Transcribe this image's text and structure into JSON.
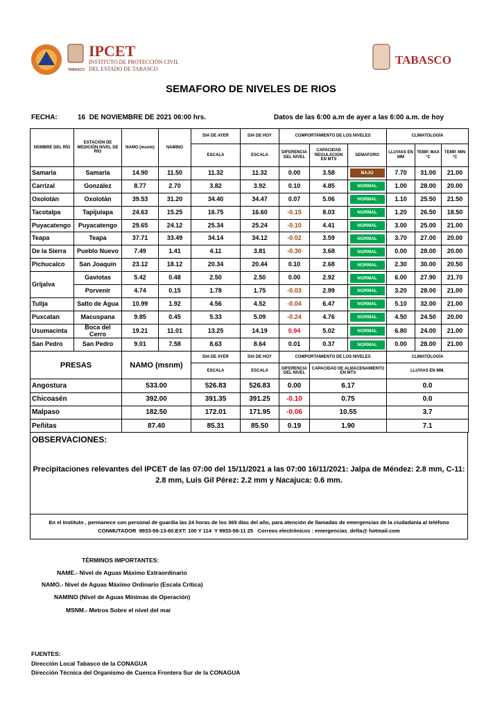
{
  "header": {
    "org_name": "IPCET",
    "org_line1": "INSTITUTO DE PROTECCIÓN CIVIL",
    "org_line2": "DEL ESTADO DE TABASCO",
    "badge_text": "TABASCO",
    "state_name": "TABASCO"
  },
  "title": "SEMAFORO DE NIVELES DE RIOS",
  "fecha_label": "FECHA:",
  "fecha": "16  DE NOVIEMBRE DE 2021 06:00 hrs.",
  "period": "Datos de las 6:00 a.m de ayer a las 6:00 a.m. de hoy",
  "rivers_table": {
    "headers": {
      "river": "NOMBRE DEL RÍO",
      "station": "ESTACIÓN DE MEDICIÓN NIVEL DE RÍO",
      "namo": "NAMO (msnm)",
      "namino": "NAMINO",
      "ayer": "DIA DE AYER",
      "hoy": "DIA DE HOY",
      "comportamiento": "COMPORTAMIENTO DE LOS NIVELES",
      "climatologia": "CLIMATOLOGÍA",
      "escala_ayer": "ESCALA",
      "escala_hoy": "ESCALA",
      "diferencia": "DIFERENCIA DEL NIVEL",
      "capacidad": "CAPACIDAD REGULACION EN MTS",
      "semaforo": "SEMAFORO",
      "lluvias": "LLUVIAS EN MM",
      "temp_max": "TEMP. MAX °C",
      "temp_min": "TEMP.  MIN °C"
    },
    "rows": [
      [
        "Samaria",
        "Samaria",
        "14.90",
        "11.50",
        "11.32",
        "11.32",
        "0.00",
        "3.58",
        "BAJO",
        "7.70",
        "31.00",
        "21.00"
      ],
      [
        "Carrizal",
        "González",
        "8.77",
        "2.70",
        "3.82",
        "3.92",
        "0.10",
        "4.85",
        "NORMAL",
        "1.00",
        "28.00",
        "20.00"
      ],
      [
        "Oxolotán",
        "Oxolotán",
        "39.53",
        "31.20",
        "34.40",
        "34.47",
        "0.07",
        "5.06",
        "NORMAL",
        "1.10",
        "25.50",
        "21.50"
      ],
      [
        "Tacotalpa",
        "Tapijulapa",
        "24.63",
        "15.25",
        "16.75",
        "16.60",
        "-0.15",
        "8.03",
        "NORMAL",
        "1.20",
        "26.50",
        "18.50"
      ],
      [
        "Puyacatengo",
        "Puyacatengo",
        "29.65",
        "24.12",
        "25.34",
        "25.24",
        "-0.10",
        "4.41",
        "NORMAL",
        "3.00",
        "25.00",
        "21.00"
      ],
      [
        "Teapa",
        "Teapa",
        "37.71",
        "33.49",
        "34.14",
        "34.12",
        "-0.02",
        "3.59",
        "NORMAL",
        "3.70",
        "27.00",
        "20.00"
      ],
      [
        "De la Sierra",
        "Pueblo Nuevo",
        "7.49",
        "1.41",
        "4.11",
        "3.81",
        "-0.30",
        "3.68",
        "NORMAL",
        "0.00",
        "28.00",
        "20.00"
      ],
      [
        "Pichucalco",
        "San Joaquín",
        "23.12",
        "18.12",
        "20.34",
        "20.44",
        "0.10",
        "2.68",
        "NORMAL",
        "2.30",
        "30.00",
        "20.50"
      ],
      [
        "Grijalva",
        "Gaviotas",
        "5.42",
        "0.48",
        "2.50",
        "2.50",
        "0.00",
        "2.92",
        "NORMAL",
        "6.00",
        "27.90",
        "21.70"
      ],
      [
        null,
        "Porvenir",
        "4.74",
        "0.15",
        "1.78",
        "1.75",
        "-0.03",
        "2.99",
        "NORMAL",
        "3.20",
        "28.00",
        "21.00"
      ],
      [
        "Tulija",
        "Salto de Agua",
        "10.99",
        "1.92",
        "4.56",
        "4.52",
        "-0.04",
        "6.47",
        "NORMAL",
        "5.10",
        "32.00",
        "21.00"
      ],
      [
        "Puxcatan",
        "Macuspana",
        "9.85",
        "0.45",
        "5.33",
        "5.09",
        "-0.24",
        "4.76",
        "NORMAL",
        "4.50",
        "24.50",
        "20.00"
      ],
      [
        "Usumacinta",
        "Boca del Cerro",
        "19.21",
        "11.01",
        "13.25",
        "14.19",
        "0.94",
        "5.02",
        "NORMAL",
        "6.80",
        "24.00",
        "21.00"
      ],
      [
        "San Pedro",
        "San Pedro",
        "9.01",
        "7.58",
        "8.63",
        "8.64",
        "0.01",
        "0.37",
        "NORMAL",
        "0.00",
        "28.00",
        "21.00"
      ]
    ],
    "diff_colors": [
      null,
      null,
      null,
      "#9a4a12",
      "#9a4a12",
      "#9a4a12",
      "#9a4a12",
      null,
      null,
      "#9a4a12",
      "#9a4a12",
      "#9a4a12",
      "#e0001b",
      null
    ],
    "semaforo_colors": {
      "BAJO": "#8c4a1c",
      "NORMAL": "#00a650"
    }
  },
  "presas_table": {
    "headers": {
      "presas": "PRESAS",
      "namo": "NAMO (msnm)",
      "ayer": "DIA DE AYER",
      "hoy": "DIA DE HOY",
      "comportamiento": "COMPORTAMIENTO DE LOS NIVELES",
      "climatologia": "CLIMATOLOGÍA",
      "escala_ayer": "ESCALA",
      "escala_hoy": "ESCALA",
      "diferencia": "DIFERENCIA DEL NIVEL",
      "capacidad": "CAPACIDAD DE ALMACENAMIENTO EN MTS",
      "lluvias": "LLUVIAS EN MM."
    },
    "rows": [
      [
        "Angostura",
        "533.00",
        "526.83",
        "526.83",
        "0.00",
        "6.17",
        "0.0"
      ],
      [
        "Chicoasén",
        "392.00",
        "391.35",
        "391.25",
        "-0.10",
        "0.75",
        "0.0"
      ],
      [
        "Malpaso",
        "182.50",
        "172.01",
        "171.95",
        "-0.06",
        "10.55",
        "3.7"
      ],
      [
        "Peñitas",
        "87.40",
        "85.31",
        "85.50",
        "0.19",
        "1.90",
        "7.1"
      ]
    ],
    "diff_colors": [
      null,
      "#e0001b",
      "#e0001b",
      null
    ]
  },
  "observaciones": {
    "label": "OBSERVACIONES:",
    "text": "Precipitaciones relevantes del IPCET de las 07:00 del 15/11/2021 a las 07:00 16/11/2021: Jalpa de Méndez: 2.8 mm,   C-11: 2.8 mm, Luis Gil Pérez: 2.2 mm y Nacajuca: 0.6 mm."
  },
  "notice": {
    "line1": "En el Instituto , permanece con personal de guardia las 24 horas de los 365 días del año, para atención de llamadas de emergencias de la ciudadanía al teléfono",
    "line2": "CONMUTADOR  9933-58-13-60.EXT: 100 Y 114  Y 9933-58-11 25   Correos electrónicos : emergencias_delta@ hotmail.com"
  },
  "terms": {
    "title": "TÉRMINOS IMPORTANTES:",
    "items": [
      "NAME.- Nivel de Aguas Máximo Extraordinario",
      "NAMO.- Nivel de Aguas Máximo Ordinario (Escala Crítica)",
      "NAMINO (Nivel de Aguas Mínimas de Operación)",
      "MSNM.- Metros Sobre el nivel del mar"
    ]
  },
  "sources": {
    "title": "FUENTES:",
    "items": [
      "Dirección Local Tabasco de la CONAGUA",
      "Dirección Técnica del Organismo de Cuenca Frontera Sur de la CONAGUA"
    ]
  }
}
